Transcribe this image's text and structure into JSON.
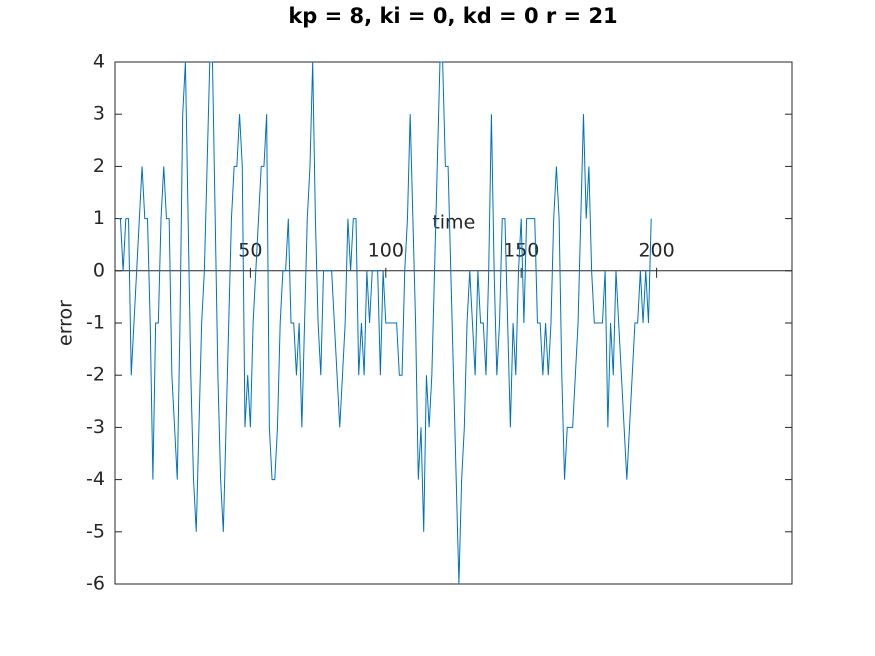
{
  "chart_data": {
    "type": "line",
    "title": "kp = 8, ki = 0, kd = 0 r = 21",
    "xlabel": "time",
    "ylabel": "error",
    "x": [
      1,
      2,
      3,
      4,
      5,
      6,
      7,
      8,
      9,
      10,
      11,
      12,
      13,
      14,
      15,
      16,
      17,
      18,
      19,
      20,
      21,
      22,
      23,
      24,
      25,
      26,
      27,
      28,
      29,
      30,
      31,
      32,
      33,
      34,
      35,
      36,
      37,
      38,
      39,
      40,
      41,
      42,
      43,
      44,
      45,
      46,
      47,
      48,
      49,
      50,
      51,
      52,
      53,
      54,
      55,
      56,
      57,
      58,
      59,
      60,
      61,
      62,
      63,
      64,
      65,
      66,
      67,
      68,
      69,
      70,
      71,
      72,
      73,
      74,
      75,
      76,
      77,
      78,
      79,
      80,
      81,
      82,
      83,
      84,
      85,
      86,
      87,
      88,
      89,
      90,
      91,
      92,
      93,
      94,
      95,
      96,
      97,
      98,
      99,
      100,
      101,
      102,
      103,
      104,
      105,
      106,
      107,
      108,
      109,
      110,
      111,
      112,
      113,
      114,
      115,
      116,
      117,
      118,
      119,
      120,
      121,
      122,
      123,
      124,
      125,
      126,
      127,
      128,
      129,
      130,
      131,
      132,
      133,
      134,
      135,
      136,
      137,
      138,
      139,
      140,
      141,
      142,
      143,
      144,
      145,
      146,
      147,
      148,
      149,
      150,
      151,
      152,
      153,
      154,
      155,
      156,
      157,
      158,
      159,
      160,
      161,
      162,
      163,
      164,
      165,
      166,
      167,
      168,
      169,
      170,
      171,
      172,
      173,
      174,
      175,
      176,
      177,
      178,
      179,
      180,
      181,
      182,
      183,
      184,
      185,
      186,
      187,
      188,
      189,
      190,
      191,
      192,
      193,
      194,
      195,
      196,
      197,
      198
    ],
    "values": [
      1,
      1,
      0,
      1,
      1,
      -2,
      -1,
      0,
      1,
      2,
      1,
      1,
      -1,
      -4,
      -1,
      -1,
      1,
      2,
      1,
      1,
      -2,
      -3,
      -4,
      -1,
      3,
      4,
      1,
      -2,
      -4,
      -5,
      -3,
      -1,
      0,
      2,
      4,
      4,
      1,
      -2,
      -4,
      -5,
      -3,
      -1,
      1,
      2,
      2,
      3,
      2,
      -3,
      -2,
      -3,
      -1,
      0,
      1,
      2,
      2,
      3,
      -3,
      -4,
      -4,
      -3,
      -1,
      0,
      0,
      1,
      -1,
      -1,
      -2,
      -1,
      -3,
      -1,
      1,
      2,
      4,
      1,
      -1,
      -2,
      0,
      0,
      0,
      0,
      -1,
      -2,
      -3,
      -2,
      -1,
      1,
      0,
      1,
      1,
      -2,
      -1,
      -2,
      0,
      -1,
      0,
      0,
      0,
      -2,
      0,
      -1,
      -1,
      -1,
      -1,
      -1,
      -2,
      -2,
      0,
      1,
      3,
      1,
      -1,
      -4,
      -3,
      -5,
      -2,
      -3,
      -2,
      0,
      2,
      4,
      4,
      2,
      2,
      0,
      -2,
      -4,
      -6,
      -4,
      -3,
      -1,
      0,
      -1,
      -2,
      0,
      -1,
      -1,
      -2,
      0,
      3,
      0,
      -2,
      -1,
      1,
      1,
      -1,
      -3,
      -1,
      -2,
      0,
      1,
      -1,
      1,
      1,
      1,
      1,
      -1,
      -1,
      -2,
      -1,
      -2,
      -1,
      1,
      2,
      1,
      -2,
      -4,
      -3,
      -3,
      -3,
      -2,
      -1,
      1,
      3,
      1,
      2,
      0,
      -1,
      -1,
      -1,
      -1,
      0,
      -3,
      -1,
      -2,
      0,
      -1,
      -2,
      -3,
      -4,
      -3,
      -2,
      -1,
      -1,
      0,
      -1,
      0,
      -1,
      1
    ],
    "color": "#0072bd",
    "xlim": [
      0,
      250
    ],
    "xticks": [
      50,
      100,
      150,
      200
    ],
    "ylim": [
      -6,
      4
    ],
    "yticks": [
      -6,
      -5,
      -4,
      -3,
      -2,
      -1,
      0,
      1,
      2,
      3,
      4
    ]
  }
}
